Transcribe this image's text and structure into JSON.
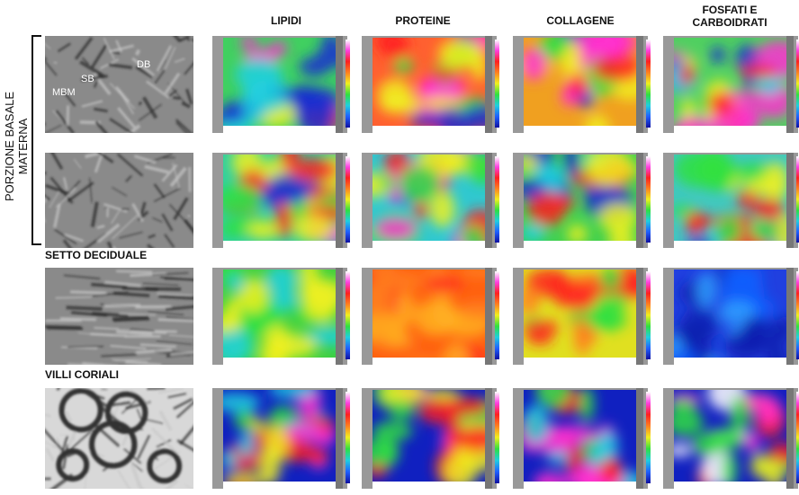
{
  "columns": [
    "LIPIDI",
    "PROTEINE",
    "COLLAGENE",
    "FOSFATI E CARBOIDRATI"
  ],
  "group_label": "PORZIONE BASALE MATERNA",
  "section_labels": [
    "SETTO DECIDUALE",
    "VILLI CORIALI"
  ],
  "image_labels": [
    "SB",
    "DB",
    "MBM"
  ]
}
